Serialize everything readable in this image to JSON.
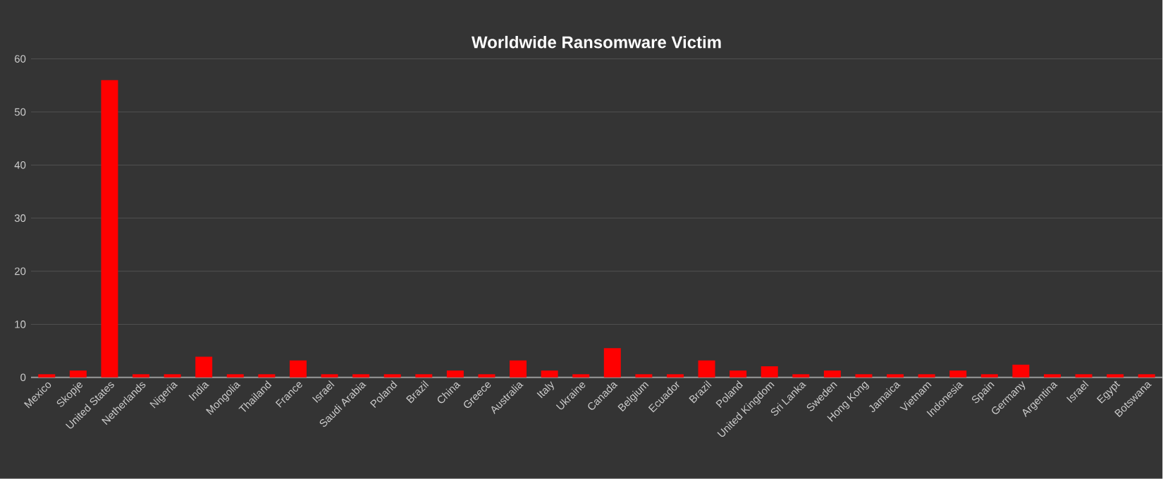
{
  "chart_data": {
    "type": "bar",
    "title": "Worldwide Ransomware Victim",
    "categories": [
      "Mexico",
      "Skopje",
      "United States",
      "Netherlands",
      "Nigeria",
      "India",
      "Mongolia",
      "Thailand",
      "France",
      "Israel",
      "Saudi Arabia",
      "Poland",
      "Brazil",
      "China",
      "Greece",
      "Australia",
      "Italy",
      "Ukraine",
      "Canada",
      "Belgium",
      "Ecuador",
      "Brazil",
      "Poland",
      "United Kingdom",
      "Sri Lanka",
      "Sweden",
      "Hong Kong",
      "Jamaica",
      "Vietnam",
      "Indonesia",
      "Spain",
      "Germany",
      "Argentina",
      "Israel",
      "Egypt",
      "Botswana"
    ],
    "values": [
      0.6,
      1.3,
      56,
      0.6,
      0.6,
      3.9,
      0.6,
      0.6,
      3.2,
      0.6,
      0.6,
      0.6,
      0.6,
      1.3,
      0.6,
      3.2,
      1.3,
      0.6,
      5.5,
      0.6,
      0.6,
      3.2,
      1.3,
      2.1,
      0.6,
      1.3,
      0.6,
      0.6,
      0.6,
      1.3,
      0.6,
      2.4,
      0.6,
      0.6,
      0.6,
      0.6
    ],
    "color": "#ff0000",
    "ylim": [
      0,
      60
    ],
    "yticks": [
      0,
      10,
      20,
      30,
      40,
      50,
      60
    ],
    "grid": "y",
    "legend": false
  }
}
